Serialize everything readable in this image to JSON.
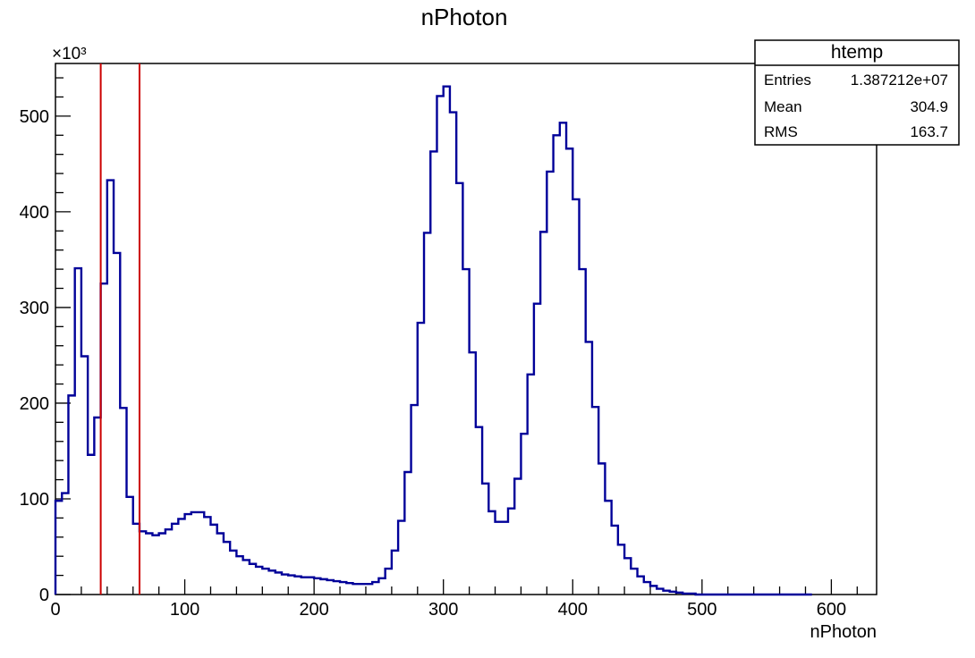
{
  "chart_data": {
    "type": "histogram",
    "title": "nPhoton",
    "xlabel": "nPhoton",
    "ylabel": "",
    "y_multiplier_label": "×10³",
    "xlim": [
      0,
      635
    ],
    "ylim": [
      0,
      555
    ],
    "bin_width": 5,
    "x_ticks": [
      "0",
      "100",
      "200",
      "300",
      "400",
      "500",
      "600"
    ],
    "y_ticks": [
      "0",
      "100",
      "200",
      "300",
      "400",
      "500"
    ],
    "series": [
      {
        "color": "#000099",
        "values": [
          98,
          106,
          208,
          341,
          249,
          146,
          185,
          325,
          433,
          357,
          195,
          102,
          74,
          66,
          64,
          62,
          64,
          68,
          74,
          79,
          84,
          86,
          86,
          81,
          73,
          64,
          55,
          46,
          40,
          36,
          32,
          29,
          27,
          25,
          23,
          21,
          20,
          19,
          18,
          18,
          17,
          16,
          15,
          14,
          13,
          12,
          11,
          11,
          11,
          13,
          17,
          27,
          46,
          77,
          128,
          198,
          284,
          378,
          463,
          521,
          531,
          504,
          430,
          340,
          253,
          175,
          116,
          87,
          76,
          76,
          90,
          121,
          168,
          230,
          304,
          379,
          442,
          480,
          493,
          466,
          413,
          340,
          264,
          196,
          137,
          98,
          72,
          52,
          38,
          27,
          19,
          13,
          9,
          6,
          4,
          3,
          2,
          1,
          1,
          0,
          0,
          0,
          0,
          0,
          0,
          0,
          0,
          0,
          0,
          0,
          0,
          0,
          0,
          0,
          0,
          0,
          0
        ]
      }
    ],
    "vertical_lines": [
      {
        "x": 35,
        "color": "#cc0000"
      },
      {
        "x": 65,
        "color": "#cc0000"
      }
    ],
    "stats_box": {
      "title": "htemp",
      "rows": [
        {
          "label": "Entries",
          "value": "1.387212e+07"
        },
        {
          "label": "Mean",
          "value": "304.9"
        },
        {
          "label": "RMS",
          "value": "163.7"
        }
      ]
    },
    "grid": false
  }
}
